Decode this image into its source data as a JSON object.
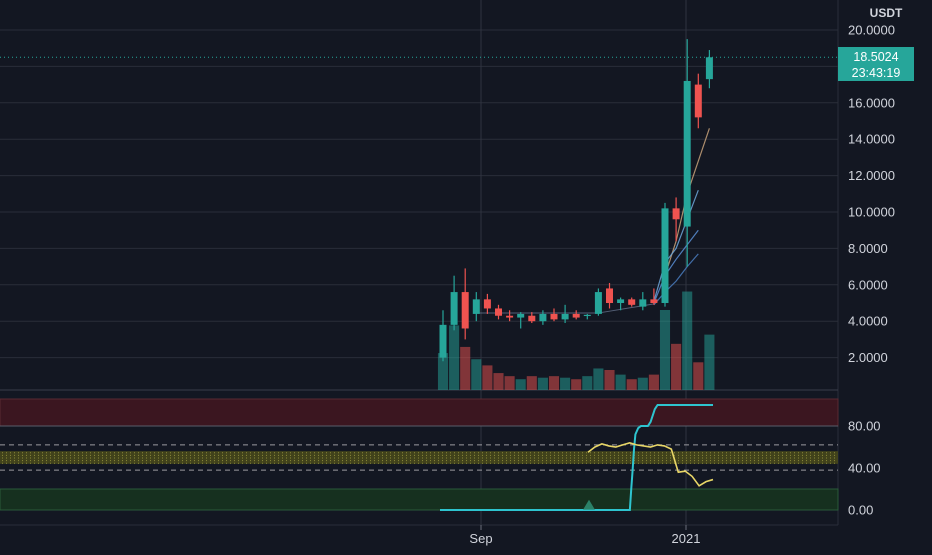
{
  "colors": {
    "background": "#131722",
    "grid": "#2a2e39",
    "up": "#26a69a",
    "down": "#ef5350",
    "rsi_line": "#2ec4cf",
    "signal_line": "#e8d667",
    "ma_colors": [
      "#c8a27a",
      "#6fa8dc",
      "#5b8fd6",
      "#4a7cc0"
    ],
    "overbought_band": "#3b1620",
    "neutral_band": "#4a4a1a",
    "oversold_band": "#16301f",
    "axis_text": "#d1d4dc",
    "price_tag": "#26a69a"
  },
  "chart_data": [
    {
      "type": "candlestick",
      "currency": "USDT",
      "ylim": [
        0,
        21
      ],
      "y_ticks": [
        "2.0000",
        "4.0000",
        "6.0000",
        "8.0000",
        "10.0000",
        "12.0000",
        "14.0000",
        "16.0000",
        "18.0000",
        "20.0000"
      ],
      "last_price": "18.5024",
      "countdown": "23:43:19",
      "x_ticks": [
        "Sep",
        "2021"
      ],
      "candles": [
        {
          "o": 2.0,
          "h": 4.6,
          "l": 1.8,
          "c": 3.8
        },
        {
          "o": 3.8,
          "h": 6.5,
          "l": 3.5,
          "c": 5.6
        },
        {
          "o": 5.6,
          "h": 6.9,
          "l": 3.0,
          "c": 3.6
        },
        {
          "o": 4.4,
          "h": 5.6,
          "l": 4.0,
          "c": 5.2
        },
        {
          "o": 5.2,
          "h": 5.5,
          "l": 4.4,
          "c": 4.7
        },
        {
          "o": 4.7,
          "h": 4.9,
          "l": 4.1,
          "c": 4.3
        },
        {
          "o": 4.3,
          "h": 4.6,
          "l": 4.0,
          "c": 4.2
        },
        {
          "o": 4.2,
          "h": 4.5,
          "l": 3.6,
          "c": 4.4
        },
        {
          "o": 4.3,
          "h": 4.5,
          "l": 3.9,
          "c": 4.0
        },
        {
          "o": 4.0,
          "h": 4.6,
          "l": 3.8,
          "c": 4.4
        },
        {
          "o": 4.4,
          "h": 4.7,
          "l": 4.0,
          "c": 4.1
        },
        {
          "o": 4.1,
          "h": 4.9,
          "l": 3.9,
          "c": 4.4
        },
        {
          "o": 4.4,
          "h": 4.6,
          "l": 4.1,
          "c": 4.2
        },
        {
          "o": 4.3,
          "h": 4.4,
          "l": 4.1,
          "c": 4.35
        },
        {
          "o": 4.4,
          "h": 5.8,
          "l": 4.3,
          "c": 5.6
        },
        {
          "o": 5.8,
          "h": 6.1,
          "l": 4.7,
          "c": 5.0
        },
        {
          "o": 5.0,
          "h": 5.3,
          "l": 4.6,
          "c": 5.2
        },
        {
          "o": 5.2,
          "h": 5.3,
          "l": 4.8,
          "c": 4.9
        },
        {
          "o": 4.8,
          "h": 5.6,
          "l": 4.6,
          "c": 5.2
        },
        {
          "o": 5.2,
          "h": 5.8,
          "l": 4.9,
          "c": 5.0
        },
        {
          "o": 5.0,
          "h": 10.5,
          "l": 4.8,
          "c": 10.2
        },
        {
          "o": 10.2,
          "h": 10.8,
          "l": 8.4,
          "c": 9.6
        },
        {
          "o": 9.2,
          "h": 19.5,
          "l": 7.0,
          "c": 17.2
        },
        {
          "o": 17.0,
          "h": 17.6,
          "l": 14.6,
          "c": 15.2
        },
        {
          "o": 17.3,
          "h": 18.9,
          "l": 16.8,
          "c": 18.5
        }
      ],
      "volumes": [
        2.4,
        4.2,
        2.8,
        2.0,
        1.6,
        1.1,
        0.9,
        0.7,
        0.9,
        0.8,
        0.9,
        0.8,
        0.7,
        0.9,
        1.4,
        1.3,
        1.0,
        0.7,
        0.8,
        1.0,
        5.2,
        3.0,
        6.4,
        1.8,
        3.6
      ],
      "volume_max": 6.5,
      "moving_averages": [
        {
          "start": 20,
          "values": [
            6.5,
            8.4,
            11.0,
            12.8,
            14.6
          ]
        },
        {
          "start": 19,
          "values": [
            5.1,
            7.2,
            8.0,
            9.6,
            11.2
          ]
        },
        {
          "start": 19,
          "values": [
            5.0,
            6.5,
            7.4,
            8.2,
            9.0
          ]
        },
        {
          "start": 19,
          "values": [
            4.9,
            5.6,
            6.2,
            7.0,
            7.7
          ]
        }
      ]
    },
    {
      "type": "line",
      "ylim": [
        -6,
        106
      ],
      "y_ticks": [
        "0.00",
        "40.00",
        "80.00"
      ],
      "dashed_levels": [
        38,
        62
      ],
      "overbought": [
        80,
        100
      ],
      "oversold": [
        0,
        20
      ],
      "neutral_band": [
        44,
        56
      ],
      "series": [
        {
          "color": "rsi_line",
          "values": [
            0,
            0,
            0,
            0,
            0,
            0,
            0,
            0,
            0,
            0,
            0,
            0,
            0,
            0,
            0,
            0,
            0,
            0,
            0,
            0,
            0,
            0,
            0,
            0,
            0,
            0,
            0,
            0,
            0,
            0,
            0,
            0,
            0,
            0,
            0,
            0,
            0,
            0,
            0,
            0,
            0,
            0,
            0,
            0,
            0,
            0,
            0,
            0,
            0,
            0,
            0,
            0,
            0,
            0,
            0,
            0,
            0,
            0,
            0,
            0,
            0,
            0,
            0,
            0,
            0,
            0,
            0,
            0,
            0,
            0,
            0,
            0,
            0,
            0,
            0,
            0,
            0,
            0,
            0,
            0,
            0,
            0,
            0,
            0,
            0,
            0,
            0,
            0,
            0,
            0,
            0,
            0,
            0,
            0,
            0,
            0,
            0,
            0,
            0,
            0,
            0,
            0,
            0,
            0,
            0,
            0,
            0,
            0,
            0,
            0,
            0,
            0,
            0,
            0,
            0,
            0,
            0,
            0,
            0,
            0,
            0,
            0,
            0,
            0,
            0,
            0,
            0,
            0,
            0,
            0,
            0,
            0,
            0,
            0,
            0,
            0,
            0,
            0,
            20,
            38,
            58,
            72,
            75,
            78,
            79,
            80,
            80,
            80,
            80,
            80,
            80,
            82,
            84,
            88,
            92,
            96,
            98,
            100,
            100,
            100,
            100,
            100,
            100,
            100,
            100,
            100,
            100,
            100,
            100,
            100,
            100,
            100,
            100,
            100,
            100,
            100,
            100,
            100,
            100,
            100,
            100,
            100,
            100,
            100,
            100,
            100,
            100,
            100,
            100,
            100,
            100,
            100,
            100,
            100,
            100,
            100,
            100,
            100
          ]
        },
        {
          "color": "signal_line",
          "values": [
            55,
            60,
            63,
            61,
            60,
            62,
            64,
            62,
            61,
            60,
            62,
            61,
            58,
            36,
            37,
            32,
            23,
            27,
            29
          ]
        }
      ],
      "signal_marker": "up-triangle"
    }
  ]
}
